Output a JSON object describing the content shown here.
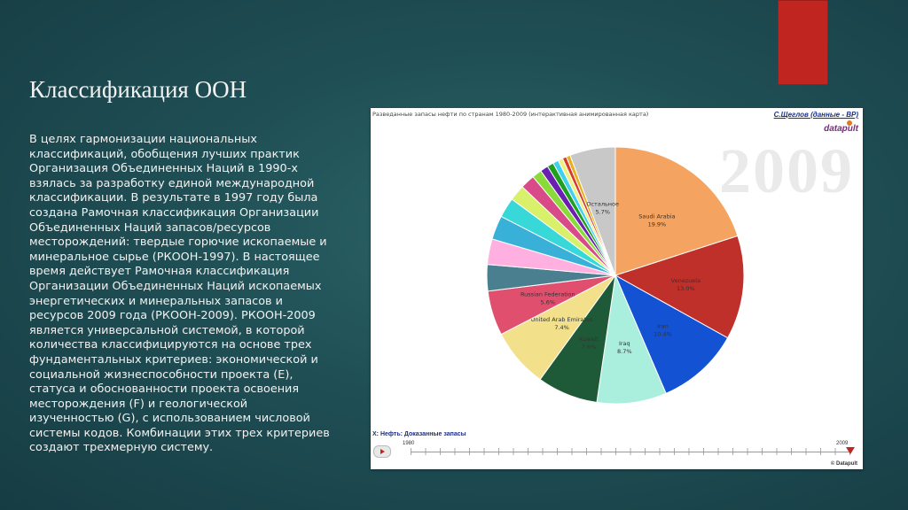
{
  "slide": {
    "title": "Классификация ООН",
    "body": "В целях гармонизации национальных классификаций, обобщения лучших практик Организация Объединенных Наций в 1990-х взялась за разработку единой международной классификации. В результате в 1997 году была создана Рамочная классификация Организации Объединенных Наций запасов/ресурсов месторождений: твердые горючие ископаемые и минеральное сырье (РКООН-1997). В настоящее время действует Рамочная классификация Организации Объединенных Наций ископаемых энергетических и минеральных запасов и ресурсов 2009 года (РКООН-2009). РКООН-2009 является универсальной системой, в которой количества классифицируются на основе трех фундаментальных критериев: экономической и социальной жизнеспособности проекта (E), статуса и обоснованности проекта освоения месторождения (F) и геологической изученностью (G), с использованием числовой системы кодов. Комбинации этих трех критериев создают трехмерную систему.",
    "accent_color": "#c0261f"
  },
  "embed": {
    "header": "Разведанные запасы нефти по странам 1980-2009 (интерактивная анимированная карта)",
    "author_link": "С.Щеглов (данные - BP)",
    "logo": "datapult",
    "year_watermark": "2009",
    "axis_label": "X: Нефть: Доказанные запасы",
    "slider": {
      "start": "1980",
      "end": "2009",
      "value": 2009
    },
    "copyright": "© Datapult"
  },
  "chart_data": {
    "type": "pie",
    "title": "",
    "slices": [
      {
        "label": "Saudi Arabia",
        "value": 19.9,
        "label_text": "19.9%",
        "color": "#f4a460"
      },
      {
        "label": "Venezuela",
        "value": 13.0,
        "label_text": "13.0%",
        "color": "#c0302a"
      },
      {
        "label": "Iran",
        "value": 10.4,
        "label_text": "10.4%",
        "color": "#1452d4"
      },
      {
        "label": "Iraq",
        "value": 8.7,
        "label_text": "8.7%",
        "color": "#aaeedd"
      },
      {
        "label": "Kuwait",
        "value": 7.6,
        "label_text": "7.6%",
        "color": "#1f5a38"
      },
      {
        "label": "United Arab Emirates",
        "value": 7.4,
        "label_text": "7.4%",
        "color": "#f2e08a"
      },
      {
        "label": "Russian Federation",
        "value": 5.6,
        "label_text": "5.6%",
        "color": "#e0506e"
      },
      {
        "label": "",
        "value": 3.3,
        "color": "#4a7f8f"
      },
      {
        "label": "",
        "value": 3.2,
        "color": "#ffb0e0"
      },
      {
        "label": "",
        "value": 3.0,
        "color": "#38b0d8"
      },
      {
        "label": "",
        "value": 2.5,
        "color": "#38d8d8"
      },
      {
        "label": "",
        "value": 2.0,
        "color": "#d8f06a"
      },
      {
        "label": "",
        "value": 1.8,
        "color": "#d84a88"
      },
      {
        "label": "",
        "value": 1.2,
        "color": "#8ada3a"
      },
      {
        "label": "",
        "value": 1.0,
        "color": "#6a1fb0"
      },
      {
        "label": "",
        "value": 0.8,
        "color": "#20a020"
      },
      {
        "label": "",
        "value": 0.7,
        "color": "#40d0f0"
      },
      {
        "label": "",
        "value": 0.6,
        "color": "#f0f080"
      },
      {
        "label": "",
        "value": 0.5,
        "color": "#d83a2a"
      },
      {
        "label": "",
        "value": 0.5,
        "color": "#e8b020"
      },
      {
        "label": "Остальное",
        "value": 5.7,
        "label_text": "5.7%",
        "color": "#c8c8c8"
      }
    ]
  }
}
